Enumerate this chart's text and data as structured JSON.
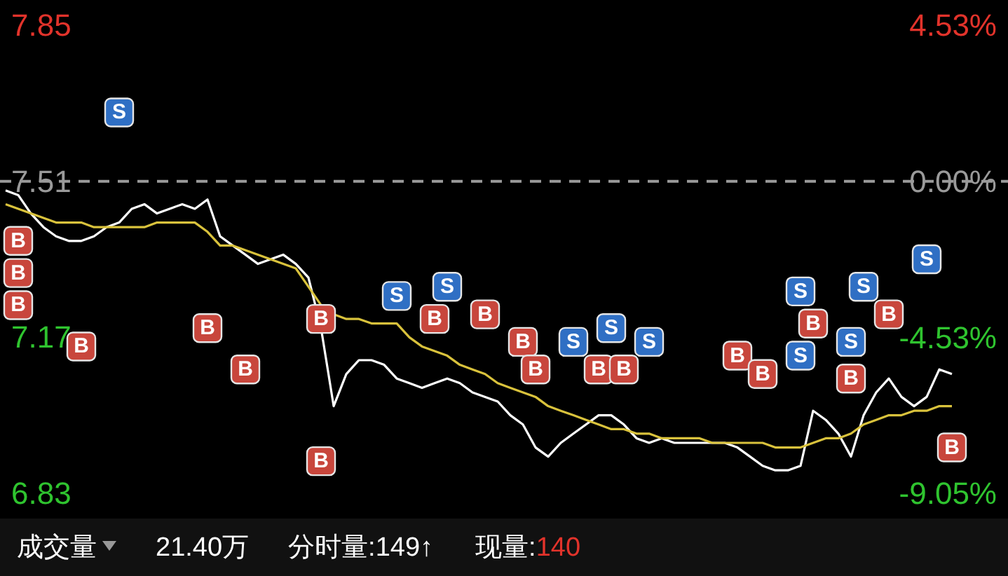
{
  "chart_data": {
    "type": "line",
    "categories": [
      null,
      null,
      null,
      null,
      null,
      null,
      null,
      null,
      null,
      null,
      null,
      null,
      null,
      null,
      null,
      null,
      null,
      null,
      null,
      null,
      null,
      null,
      null,
      null,
      null,
      null,
      null,
      null,
      null,
      null,
      null,
      null,
      null,
      null,
      null,
      null,
      null,
      null,
      null,
      null,
      null,
      null,
      null,
      null,
      null,
      null,
      null,
      null,
      null,
      null,
      null,
      null,
      null,
      null,
      null,
      null,
      null,
      null,
      null,
      null,
      null,
      null,
      null,
      null,
      null,
      null,
      null,
      null,
      null,
      null,
      null,
      null,
      null,
      null,
      null,
      null
    ],
    "ylim": [
      6.83,
      7.85
    ],
    "yticks": [
      6.83,
      7.17,
      7.51,
      7.85
    ],
    "y2lim": [
      -9.05,
      4.53
    ],
    "y2ticks": [
      {
        "value": 4.53,
        "label": "4.53%"
      },
      {
        "value": 0,
        "label": "0.00%"
      },
      {
        "value": -4.53,
        "label": "-4.53%"
      },
      {
        "value": -9.05,
        "label": "-9.05%"
      }
    ],
    "tick_labels": "y",
    "series": [
      {
        "color": "#ffffff",
        "values": [
          7.49,
          7.48,
          7.44,
          7.41,
          7.39,
          7.38,
          7.38,
          7.39,
          7.41,
          7.42,
          7.45,
          7.46,
          7.44,
          7.45,
          7.46,
          7.45,
          7.47,
          7.39,
          7.37,
          7.35,
          7.33,
          7.34,
          7.35,
          7.33,
          7.3,
          7.19,
          7.02,
          7.09,
          7.12,
          7.12,
          7.11,
          7.08,
          7.07,
          7.06,
          7.07,
          7.08,
          7.07,
          7.05,
          7.04,
          7.03,
          7.0,
          6.98,
          6.93,
          6.91,
          6.94,
          6.96,
          6.98,
          7.0,
          7.0,
          6.98,
          6.95,
          6.94,
          6.95,
          6.94,
          6.94,
          6.94,
          6.94,
          6.94,
          6.93,
          6.91,
          6.89,
          6.88,
          6.88,
          6.89,
          7.01,
          6.99,
          6.96,
          6.91,
          7.0,
          7.05,
          7.08,
          7.04,
          7.02,
          7.04,
          7.1,
          7.09
        ]
      },
      {
        "color": "#d9c23c",
        "values": [
          7.46,
          7.45,
          7.44,
          7.43,
          7.42,
          7.42,
          7.42,
          7.41,
          7.41,
          7.41,
          7.41,
          7.41,
          7.42,
          7.42,
          7.42,
          7.42,
          7.4,
          7.37,
          7.37,
          7.36,
          7.35,
          7.34,
          7.33,
          7.32,
          7.28,
          7.24,
          7.22,
          7.21,
          7.21,
          7.2,
          7.2,
          7.2,
          7.17,
          7.15,
          7.14,
          7.13,
          7.11,
          7.1,
          7.09,
          7.07,
          7.06,
          7.05,
          7.04,
          7.02,
          7.01,
          7.0,
          6.99,
          6.98,
          6.97,
          6.97,
          6.96,
          6.96,
          6.95,
          6.95,
          6.95,
          6.95,
          6.94,
          6.94,
          6.94,
          6.94,
          6.94,
          6.93,
          6.93,
          6.93,
          6.94,
          6.95,
          6.95,
          6.96,
          6.98,
          6.99,
          7.0,
          7.0,
          7.01,
          7.01,
          7.02,
          7.02
        ]
      },
      {
        "type": "scatter",
        "name": "S",
        "color": "#2f6fc4",
        "values": [
          null,
          null,
          null,
          null,
          null,
          null,
          null,
          null,
          null,
          7.66,
          null,
          null,
          null,
          null,
          null,
          null,
          null,
          null,
          null,
          null,
          null,
          null,
          null,
          null,
          null,
          null,
          null,
          null,
          null,
          null,
          null,
          7.26,
          null,
          null,
          null,
          7.28,
          null,
          null,
          null,
          null,
          null,
          null,
          null,
          null,
          null,
          7.16,
          null,
          null,
          7.19,
          null,
          null,
          7.16,
          null,
          null,
          null,
          null,
          null,
          null,
          null,
          null,
          null,
          null,
          null,
          7.27,
          null,
          null,
          null,
          7.16,
          7.28,
          null,
          null,
          null,
          null,
          7.34,
          null,
          null
        ]
      },
      {
        "type": "scatter",
        "name": "S",
        "color": "#2f6fc4",
        "values": [
          null,
          null,
          null,
          null,
          null,
          null,
          null,
          null,
          null,
          null,
          null,
          null,
          null,
          null,
          null,
          null,
          null,
          null,
          null,
          null,
          null,
          null,
          null,
          null,
          null,
          null,
          null,
          null,
          null,
          null,
          null,
          null,
          null,
          null,
          null,
          null,
          null,
          null,
          null,
          null,
          null,
          null,
          null,
          null,
          null,
          null,
          null,
          null,
          null,
          null,
          null,
          null,
          null,
          null,
          null,
          null,
          null,
          null,
          null,
          null,
          null,
          null,
          null,
          7.13,
          null,
          null,
          null,
          null,
          null,
          null,
          null,
          null,
          null,
          null,
          null,
          null
        ]
      },
      {
        "type": "scatter",
        "name": "B",
        "color": "#c8463c",
        "values": [
          null,
          7.38,
          null,
          null,
          null,
          null,
          7.15,
          null,
          null,
          null,
          null,
          null,
          null,
          null,
          null,
          null,
          7.19,
          null,
          null,
          7.1,
          null,
          null,
          null,
          null,
          null,
          7.21,
          null,
          null,
          null,
          null,
          null,
          null,
          null,
          null,
          7.21,
          null,
          null,
          null,
          7.22,
          null,
          null,
          7.16,
          7.1,
          null,
          null,
          null,
          null,
          7.1,
          null,
          7.1,
          null,
          null,
          null,
          null,
          null,
          null,
          null,
          null,
          7.13,
          null,
          7.09,
          null,
          null,
          null,
          7.2,
          null,
          null,
          7.08,
          null,
          null,
          7.22,
          null,
          null,
          null,
          null,
          6.93
        ]
      },
      {
        "type": "scatter",
        "name": "B",
        "color": "#c8463c",
        "values": [
          null,
          7.31,
          null,
          null,
          null,
          null,
          null,
          null,
          null,
          null,
          null,
          null,
          null,
          null,
          null,
          null,
          null,
          null,
          null,
          null,
          null,
          null,
          null,
          null,
          null,
          6.9,
          null,
          null,
          null,
          null,
          null,
          null,
          null,
          null,
          null,
          null,
          null,
          null,
          null,
          null,
          null,
          null,
          null,
          null,
          null,
          null,
          null,
          null,
          null,
          null,
          null,
          null,
          null,
          null,
          null,
          null,
          null,
          null,
          null,
          null,
          null,
          null,
          null,
          null,
          null,
          null,
          null,
          null,
          null,
          null,
          null,
          null,
          null,
          null,
          null,
          null
        ]
      },
      {
        "type": "scatter",
        "name": "B",
        "color": "#c8463c",
        "values": [
          null,
          7.24,
          null,
          null,
          null,
          null,
          null,
          null,
          null,
          null,
          null,
          null,
          null,
          null,
          null,
          null,
          null,
          null,
          null,
          null,
          null,
          null,
          null,
          null,
          null,
          null,
          null,
          null,
          null,
          null,
          null,
          null,
          null,
          null,
          null,
          null,
          null,
          null,
          null,
          null,
          null,
          null,
          null,
          null,
          null,
          null,
          null,
          null,
          null,
          null,
          null,
          null,
          null,
          null,
          null,
          null,
          null,
          null,
          null,
          null,
          null,
          null,
          null,
          null,
          null,
          null,
          null,
          null,
          null,
          null,
          null,
          null,
          null,
          null,
          null,
          null
        ]
      }
    ],
    "ref_lines": [
      {
        "axis": "y",
        "value": 7.51,
        "line_style": "dashed",
        "color": "#9a9a9a"
      }
    ],
    "annotations": [
      "成交量",
      "21.40万",
      "分时量:149↑",
      "现量:",
      "140"
    ]
  }
}
